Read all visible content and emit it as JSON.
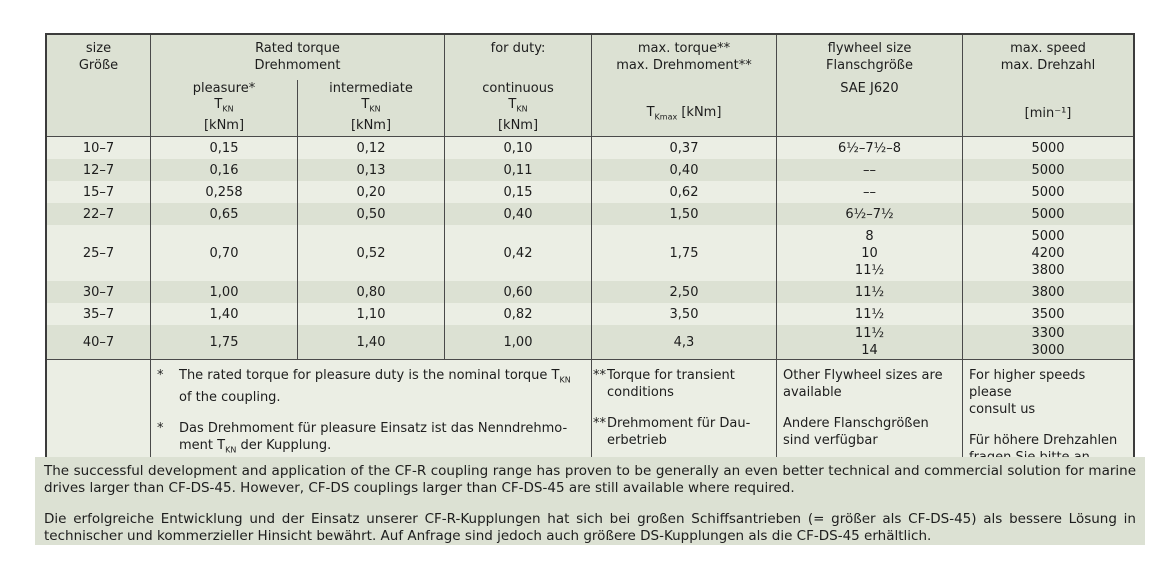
{
  "colors": {
    "page_bg": "#ffffff",
    "shade_dark": "#dce1d3",
    "shade_light": "#ebeee4",
    "border": "#4a4a4a",
    "text": "#1d1d1d"
  },
  "table": {
    "header": {
      "size": {
        "line1": "size",
        "line2": "Größe"
      },
      "rated": {
        "line1": "Rated torque",
        "line2": "Drehmoment"
      },
      "pleasure": {
        "label": "pleasure*",
        "sym": "T",
        "sub": "KN",
        "unit": "[kNm]"
      },
      "intermediate": {
        "label": "intermediate",
        "sym": "T",
        "sub": "KN",
        "unit": "[kNm]"
      },
      "duty": {
        "line1": "for duty:",
        "label": "continuous",
        "sym": "T",
        "sub": "KN",
        "unit": "[kNm]"
      },
      "max_torque": {
        "line1": "max. torque**",
        "line2": "max. Drehmoment**",
        "sym": "T",
        "sub": "Kmax",
        "unit": " [kNm]"
      },
      "flywheel": {
        "line1": "flywheel size",
        "line2": "Flanschgröße",
        "line3": "SAE J620"
      },
      "speed": {
        "line1": "max. speed",
        "line2": "max. Drehzahl",
        "unit": "[min⁻¹]"
      }
    },
    "rows": [
      {
        "size": [
          "10–7"
        ],
        "pleasure": [
          "0,15"
        ],
        "intermediate": [
          "0,12"
        ],
        "continuous": [
          "0,10"
        ],
        "max_torque": [
          "0,37"
        ],
        "flywheel": [
          "6½–7½–8"
        ],
        "speed": [
          "5000"
        ]
      },
      {
        "size": [
          "12–7"
        ],
        "pleasure": [
          "0,16"
        ],
        "intermediate": [
          "0,13"
        ],
        "continuous": [
          "0,11"
        ],
        "max_torque": [
          "0,40"
        ],
        "flywheel": [
          "––"
        ],
        "speed": [
          "5000"
        ]
      },
      {
        "size": [
          "15–7"
        ],
        "pleasure": [
          "0,258"
        ],
        "intermediate": [
          "0,20"
        ],
        "continuous": [
          "0,15"
        ],
        "max_torque": [
          "0,62"
        ],
        "flywheel": [
          "––"
        ],
        "speed": [
          "5000"
        ]
      },
      {
        "size": [
          "22–7"
        ],
        "pleasure": [
          "0,65"
        ],
        "intermediate": [
          "0,50"
        ],
        "continuous": [
          "0,40"
        ],
        "max_torque": [
          "1,50"
        ],
        "flywheel": [
          "6½–7½"
        ],
        "speed": [
          "5000"
        ]
      },
      {
        "size": [
          "25–7"
        ],
        "pleasure": [
          "0,70"
        ],
        "intermediate": [
          "0,52"
        ],
        "continuous": [
          "0,42"
        ],
        "max_torque": [
          "1,75"
        ],
        "flywheel": [
          "8",
          "10",
          "11½"
        ],
        "speed": [
          "5000",
          "4200",
          "3800"
        ]
      },
      {
        "size": [
          "30–7"
        ],
        "pleasure": [
          "1,00"
        ],
        "intermediate": [
          "0,80"
        ],
        "continuous": [
          "0,60"
        ],
        "max_torque": [
          "2,50"
        ],
        "flywheel": [
          "11½"
        ],
        "speed": [
          "3800"
        ]
      },
      {
        "size": [
          "35–7"
        ],
        "pleasure": [
          "1,40"
        ],
        "intermediate": [
          "1,10"
        ],
        "continuous": [
          "0,82"
        ],
        "max_torque": [
          "3,50"
        ],
        "flywheel": [
          "11½"
        ],
        "speed": [
          "3500"
        ]
      },
      {
        "size": [
          "40–7"
        ],
        "pleasure": [
          "1,75"
        ],
        "intermediate": [
          "1,40"
        ],
        "continuous": [
          "1,00"
        ],
        "max_torque": [
          "4,3"
        ],
        "flywheel": [
          "11½",
          "14"
        ],
        "speed": [
          "3300",
          "3000"
        ]
      }
    ],
    "footnotes": {
      "pleasure_star": "*",
      "pleasure_en": [
        "The rated torque for pleasure duty is the nominal torque T",
        {
          "sub": "KN"
        },
        {
          "br": true
        },
        "of the coupling."
      ],
      "pleasure_de_star": "*",
      "pleasure_de": [
        "Das Drehmoment für pleasure Einsatz ist das Nenndrehmo-",
        {
          "br": true
        },
        "ment T",
        {
          "sub": "KN"
        },
        " der Kupplung."
      ],
      "transient_star": "**",
      "transient_en": [
        "Torque for transient",
        {
          "br": true
        },
        "conditions"
      ],
      "transient_de_star": "**",
      "transient_de": [
        "Drehmoment für Dau-",
        {
          "br": true
        },
        "erbetrieb"
      ],
      "flywheel_en": [
        "Other Flywheel sizes are",
        {
          "br": true
        },
        "available"
      ],
      "flywheel_de": [
        "Andere Flanschgrößen",
        {
          "br": true
        },
        "sind verfügbar"
      ],
      "speed_en": [
        "For higher speeds please",
        {
          "br": true
        },
        "consult us"
      ],
      "speed_de": [
        "Für höhere Drehzahlen",
        {
          "br": true
        },
        "fragen Sie bitte an"
      ]
    }
  },
  "paragraphs": {
    "en": "The successful development and application of the CF-R coupling range has proven to be generally an even better technical and commercial solution for marine drives larger than CF-DS-45. However, CF-DS couplings larger than CF-DS-45 are still available where required.",
    "de": "Die erfolgreiche Entwicklung und der Einsatz unserer CF-R-Kupplungen hat sich bei großen Schiffsantrieben (= größer als CF-DS-45) als bessere Lösung in technischer und kommerzieller Hinsicht bewährt. Auf Anfrage sind jedoch auch größere DS-Kupplungen als die CF-DS-45 erhältlich."
  }
}
